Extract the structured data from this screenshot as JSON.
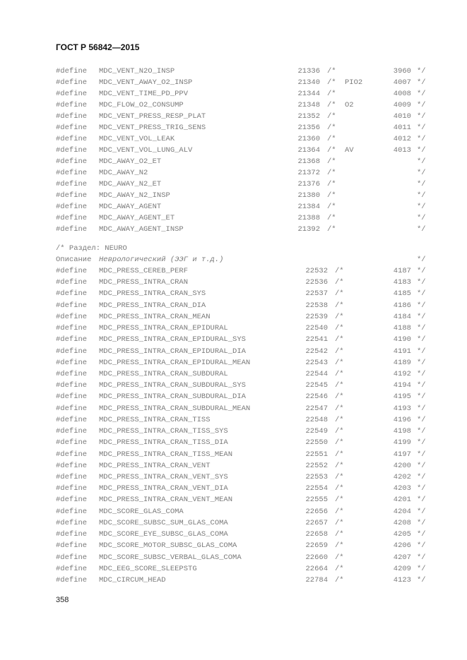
{
  "header": "ГОСТ Р 56842—2015",
  "page_number": "358",
  "define_kw": "#define",
  "open_comment": "/*",
  "close_comment": "*/",
  "block1": [
    {
      "name": "MDC_VENT_N2O_INSP",
      "code": "21336",
      "note": "",
      "value": "3960"
    },
    {
      "name": "MDC_VENT_AWAY_O2_INSP",
      "code": "21340",
      "note": "PIO2",
      "value": "4007"
    },
    {
      "name": "MDC_VENT_TIME_PD_PPV",
      "code": "21344",
      "note": "",
      "value": "4008"
    },
    {
      "name": "MDC_FLOW_O2_CONSUMP",
      "code": "21348",
      "note": "O2",
      "value": "4009"
    },
    {
      "name": "MDC_VENT_PRESS_RESP_PLAT",
      "code": "21352",
      "note": "",
      "value": "4010"
    },
    {
      "name": "MDC_VENT_PRESS_TRIG_SENS",
      "code": "21356",
      "note": "",
      "value": "4011"
    },
    {
      "name": "MDC_VENT_VOL_LEAK",
      "code": "21360",
      "note": "",
      "value": "4012"
    },
    {
      "name": "MDC_VENT_VOL_LUNG_ALV",
      "code": "21364",
      "note": "AV",
      "value": "4013"
    },
    {
      "name": "MDC_AWAY_O2_ET",
      "code": "21368",
      "note": "",
      "value": ""
    },
    {
      "name": "MDC_AWAY_N2",
      "code": "21372",
      "note": "",
      "value": ""
    },
    {
      "name": "MDC_AWAY_N2_ET",
      "code": "21376",
      "note": "",
      "value": ""
    },
    {
      "name": "MDC_AWAY_N2_INSP",
      "code": "21380",
      "note": "",
      "value": ""
    },
    {
      "name": "MDC_AWAY_AGENT",
      "code": "21384",
      "note": "",
      "value": ""
    },
    {
      "name": "MDC_AWAY_AGENT_ET",
      "code": "21388",
      "note": "",
      "value": ""
    },
    {
      "name": "MDC_AWAY_AGENT_INSP",
      "code": "21392",
      "note": "",
      "value": ""
    }
  ],
  "section": {
    "title": "/* Раздел: NEURO",
    "desc_label": "Описание",
    "desc_text": "Неврологический (ЭЭГ и т.д.)",
    "desc_close": "*/"
  },
  "block2": [
    {
      "name": "MDC_PRESS_CEREB_PERF",
      "code": "22532",
      "value": "4187"
    },
    {
      "name": "MDC_PRESS_INTRA_CRAN",
      "code": "22536",
      "value": "4183"
    },
    {
      "name": "MDC_PRESS_INTRA_CRAN_SYS",
      "code": "22537",
      "value": "4185"
    },
    {
      "name": "MDC_PRESS_INTRA_CRAN_DIA",
      "code": "22538",
      "value": "4186"
    },
    {
      "name": "MDC_PRESS_INTRA_CRAN_MEAN",
      "code": "22539",
      "value": "4184"
    },
    {
      "name": "MDC_PRESS_INTRA_CRAN_EPIDURAL",
      "code": "22540",
      "value": "4188"
    },
    {
      "name": "MDC_PRESS_INTRA_CRAN_EPIDURAL_SYS",
      "code": "22541",
      "value": "4190"
    },
    {
      "name": "MDC_PRESS_INTRA_CRAN_EPIDURAL_DIA",
      "code": "22542",
      "value": "4191"
    },
    {
      "name": "MDC_PRESS_INTRA_CRAN_EPIDURAL_MEAN",
      "code": "22543",
      "value": "4189"
    },
    {
      "name": "MDC_PRESS_INTRA_CRAN_SUBDURAL",
      "code": "22544",
      "value": "4192"
    },
    {
      "name": "MDC_PRESS_INTRA_CRAN_SUBDURAL_SYS",
      "code": "22545",
      "value": "4194"
    },
    {
      "name": "MDC_PRESS_INTRA_CRAN_SUBDURAL_DIA",
      "code": "22546",
      "value": "4195"
    },
    {
      "name": "MDC_PRESS_INTRA_CRAN_SUBDURAL_MEAN",
      "code": "22547",
      "value": "4193"
    },
    {
      "name": "MDC_PRESS_INTRA_CRAN_TISS",
      "code": "22548",
      "value": "4196"
    },
    {
      "name": "MDC_PRESS_INTRA_CRAN_TISS_SYS",
      "code": "22549",
      "value": "4198"
    },
    {
      "name": "MDC_PRESS_INTRA_CRAN_TISS_DIA",
      "code": "22550",
      "value": "4199"
    },
    {
      "name": "MDC_PRESS_INTRA_CRAN_TISS_MEAN",
      "code": "22551",
      "value": "4197"
    },
    {
      "name": "MDC_PRESS_INTRA_CRAN_VENT",
      "code": "22552",
      "value": "4200"
    },
    {
      "name": "MDC_PRESS_INTRA_CRAN_VENT_SYS",
      "code": "22553",
      "value": "4202"
    },
    {
      "name": "MDC_PRESS_INTRA_CRAN_VENT_DIA",
      "code": "22554",
      "value": "4203"
    },
    {
      "name": "MDC_PRESS_INTRA_CRAN_VENT_MEAN",
      "code": "22555",
      "value": "4201"
    },
    {
      "name": "MDC_SCORE_GLAS_COMA",
      "code": "22656",
      "value": "4204"
    },
    {
      "name": "MDC_SCORE_SUBSC_SUM_GLAS_COMA",
      "code": "22657",
      "value": "4208"
    },
    {
      "name": "MDC_SCORE_EYE_SUBSC_GLAS_COMA",
      "code": "22658",
      "value": "4205"
    },
    {
      "name": "MDC_SCORE_MOTOR_SUBSC_GLAS_COMA",
      "code": "22659",
      "value": "4206"
    },
    {
      "name": "MDC_SCORE_SUBSC_VERBAL_GLAS_COMA",
      "code": "22660",
      "value": "4207"
    },
    {
      "name": "MDC_EEG_SCORE_SLEEPSTG",
      "code": "22664",
      "value": "4209"
    },
    {
      "name": "MDC_CIRCUM_HEAD",
      "code": "22784",
      "value": "4123"
    }
  ]
}
